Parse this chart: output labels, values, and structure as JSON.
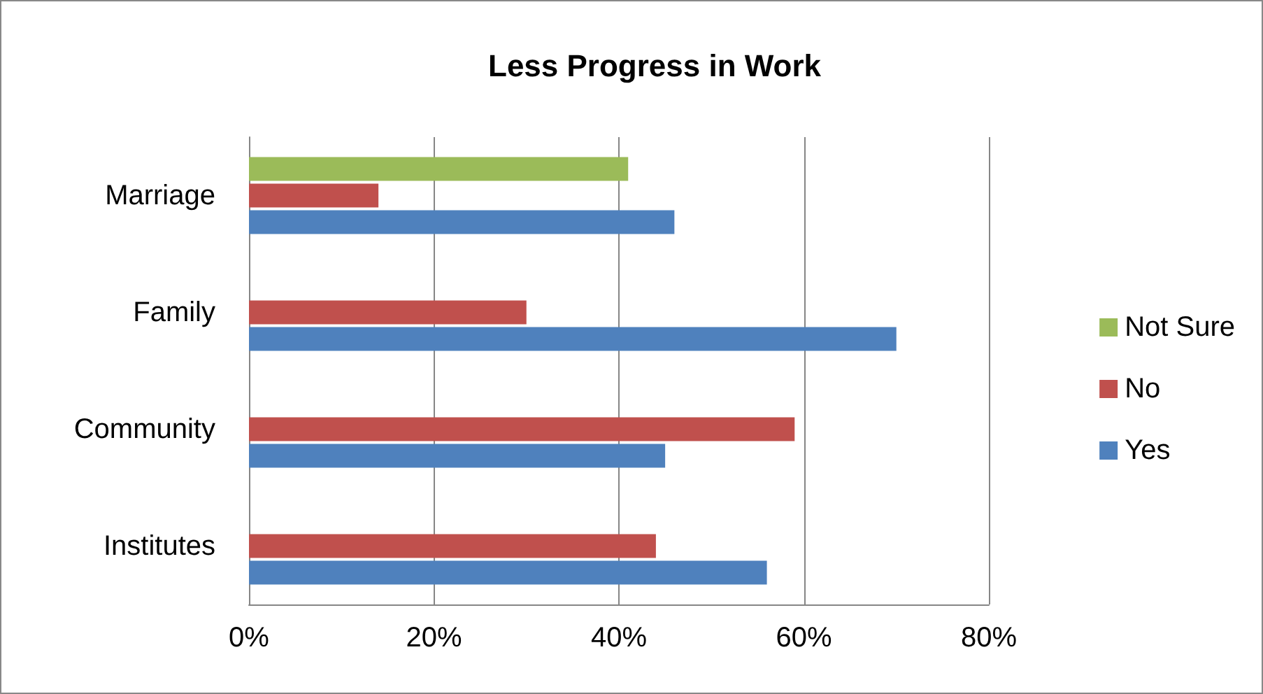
{
  "chart_data": {
    "type": "bar",
    "orientation": "horizontal",
    "title": "Less Progress in Work",
    "categories": [
      "Marriage",
      "Family",
      "Community",
      "Institutes"
    ],
    "series": [
      {
        "name": "Not Sure",
        "color": "#9bbb59",
        "values": [
          41,
          null,
          null,
          null
        ]
      },
      {
        "name": "No",
        "color": "#c0504d",
        "values": [
          14,
          30,
          59,
          44
        ]
      },
      {
        "name": "Yes",
        "color": "#4f81bd",
        "values": [
          46,
          70,
          45,
          56
        ]
      }
    ],
    "xlim": [
      0,
      80
    ],
    "xticks": [
      {
        "value": 0,
        "label": "0%"
      },
      {
        "value": 20,
        "label": "20%"
      },
      {
        "value": 40,
        "label": "40%"
      },
      {
        "value": 60,
        "label": "60%"
      },
      {
        "value": 80,
        "label": "80%"
      }
    ],
    "grid": "x",
    "legend": "right"
  }
}
